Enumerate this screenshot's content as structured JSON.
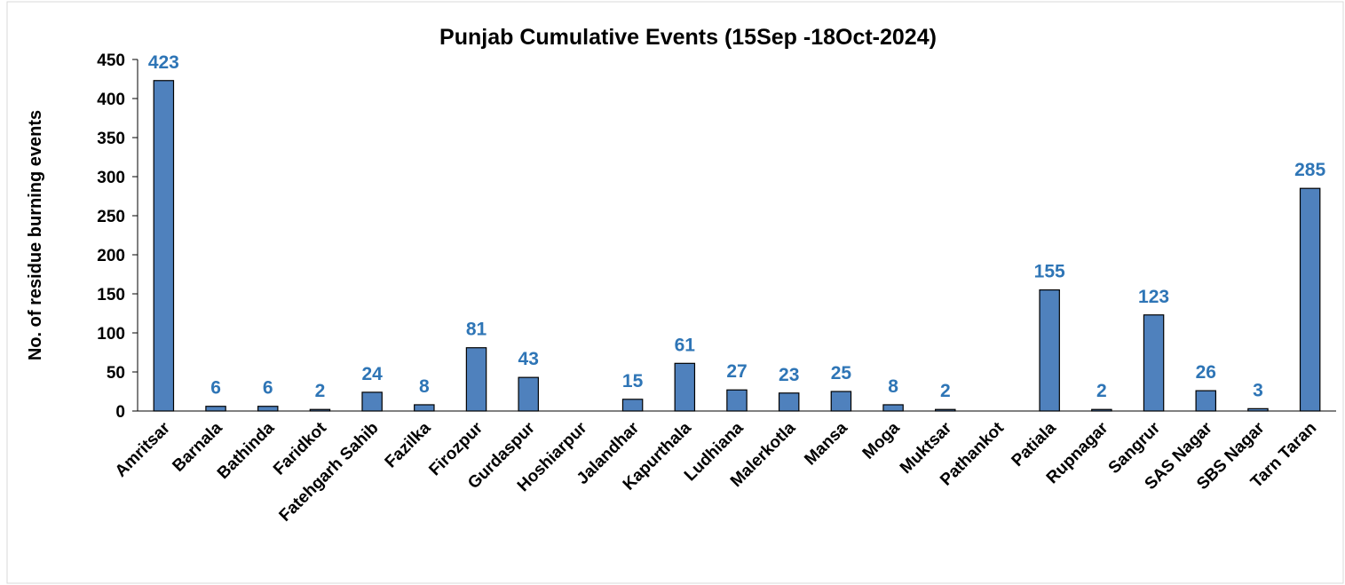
{
  "chart_data": {
    "type": "bar",
    "title": "Punjab Cumulative Events (15Sep -18Oct-2024)",
    "y_label": "No. of residue burning events",
    "categories": [
      "Amritsar",
      "Barnala",
      "Bathinda",
      "Faridkot",
      "Fatehgarh Sahib",
      "Fazilka",
      "Firozpur",
      "Gurdaspur",
      "Hoshiarpur",
      "Jalandhar",
      "Kapurthala",
      "Ludhiana",
      "Malerkotla",
      "Mansa",
      "Moga",
      "Muktsar",
      "Pathankot",
      "Patiala",
      "Rupnagar",
      "Sangrur",
      "SAS Nagar",
      "SBS Nagar",
      "Tarn Taran"
    ],
    "values": [
      423,
      6,
      6,
      2,
      24,
      8,
      81,
      43,
      null,
      15,
      61,
      27,
      23,
      25,
      8,
      2,
      null,
      155,
      2,
      123,
      26,
      3,
      285
    ],
    "color": "#4f81bd",
    "label_color": "#2e75b6",
    "ylim": [
      0,
      450
    ],
    "yticks": [
      0,
      50,
      100,
      150,
      200,
      250,
      300,
      350,
      400,
      450
    ],
    "grid": false
  }
}
